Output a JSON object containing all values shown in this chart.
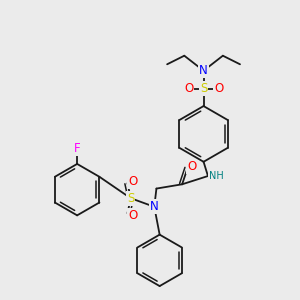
{
  "bg_color": "#ebebeb",
  "bond_color": "#1a1a1a",
  "atom_colors": {
    "N": "#0000ff",
    "O": "#ff0000",
    "S": "#cccc00",
    "F": "#ff00ff",
    "H": "#008080",
    "C": "#1a1a1a"
  },
  "font_size": 7.5,
  "figsize": [
    3.0,
    3.0
  ],
  "dpi": 100
}
